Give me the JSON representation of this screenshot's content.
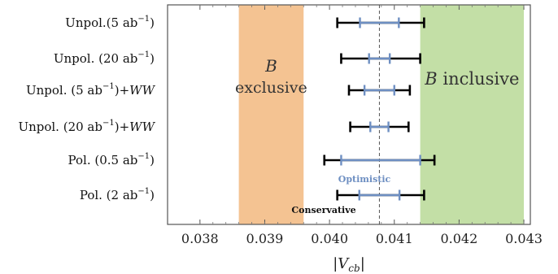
{
  "chart_data": {
    "type": "errorbar",
    "xlabel": "|V_cb|",
    "xlim": [
      0.0375,
      0.0431
    ],
    "xticks": [
      "0.038",
      "0.039",
      "0.040",
      "0.041",
      "0.042",
      "0.043"
    ],
    "xtick_values": [
      0.038,
      0.039,
      0.04,
      0.041,
      0.042,
      0.043
    ],
    "central_value": 0.04077,
    "bands": [
      {
        "label_top": "B",
        "label_bottom": "exclusive",
        "range": [
          0.0386,
          0.0396
        ],
        "color": "#f2b87f"
      },
      {
        "label_italic": "B",
        "label_rest": "inclusive",
        "range": [
          0.0414,
          0.043
        ],
        "color": "#b9d996"
      }
    ],
    "categories": [
      "Unpol.(5 ab⁻¹)",
      "Unpol. (20 ab⁻¹)",
      "Unpol. (5 ab⁻¹)+WW",
      "Unpol. (20 ab⁻¹)+WW",
      "Pol. (0.5 ab⁻¹)",
      "Pol. (2 ab⁻¹)"
    ],
    "category_labels": [
      {
        "main": "Unpol.(5 ab",
        "sup": "−1",
        "close": ")",
        "suffix": ""
      },
      {
        "main": "Unpol. (20 ab",
        "sup": "−1",
        "close": ")",
        "suffix": ""
      },
      {
        "main": "Unpol. (5 ab",
        "sup": "−1",
        "close": ")+",
        "suffix": "WW"
      },
      {
        "main": "Unpol. (20 ab",
        "sup": "−1",
        "close": ")+",
        "suffix": "WW"
      },
      {
        "main": "Pol. (0.5 ab",
        "sup": "−1",
        "close": ")",
        "suffix": ""
      },
      {
        "main": "Pol. (2 ab",
        "sup": "−1",
        "close": ")",
        "suffix": ""
      }
    ],
    "series": [
      {
        "name": "Conservative",
        "color": "#000000",
        "ranges": [
          [
            0.04012,
            0.04146
          ],
          [
            0.04018,
            0.0414
          ],
          [
            0.0403,
            0.04124
          ],
          [
            0.04032,
            0.04122
          ],
          [
            0.03992,
            0.04162
          ],
          [
            0.04012,
            0.04146
          ]
        ]
      },
      {
        "name": "Optimistic",
        "color": "#6e8fc2",
        "ranges": [
          [
            0.04047,
            0.04107
          ],
          [
            0.04061,
            0.04093
          ],
          [
            0.04054,
            0.041
          ],
          [
            0.04063,
            0.04091
          ],
          [
            0.04018,
            0.0414
          ],
          [
            0.04046,
            0.04108
          ]
        ]
      }
    ],
    "annotations": {
      "optimistic": "Optimistic",
      "conservative": "Conservative"
    },
    "grid": false
  }
}
